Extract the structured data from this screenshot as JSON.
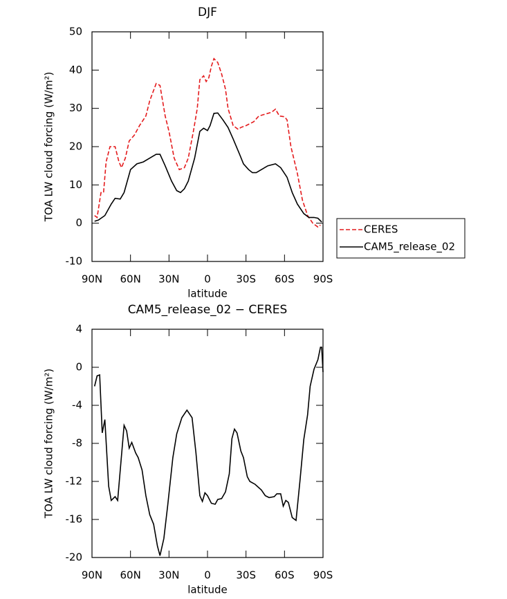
{
  "chart_data": [
    {
      "type": "line",
      "title": "DJF",
      "xlabel": "latitude",
      "ylabel": "TOA LW cloud forcing (W/m²)",
      "xlim": [
        90,
        -90
      ],
      "ylim": [
        -10,
        50
      ],
      "xticks": [
        {
          "value": 90,
          "label": "90N"
        },
        {
          "value": 60,
          "label": "60N"
        },
        {
          "value": 30,
          "label": "30N"
        },
        0,
        {
          "value": -30,
          "label": "30S"
        },
        {
          "value": -60,
          "label": "60S"
        },
        {
          "value": -90,
          "label": "90S"
        }
      ],
      "yticks": [
        -10,
        0,
        10,
        20,
        30,
        40,
        50
      ],
      "legend": "right",
      "series": [
        {
          "name": "CERES",
          "color": "#e41a1c",
          "dash": true,
          "x": [
            88,
            86,
            83,
            81,
            79,
            76,
            72,
            69,
            67,
            64,
            61,
            57,
            53,
            48,
            45,
            40,
            37,
            33,
            30,
            26,
            22,
            18,
            15,
            11,
            8,
            6,
            3,
            1,
            -1,
            -3,
            -5,
            -8,
            -11,
            -14,
            -16,
            -20,
            -24,
            -26,
            -30,
            -36,
            -40,
            -45,
            -50,
            -53,
            -56,
            -60,
            -62,
            -65,
            -70,
            -74,
            -78,
            -82,
            -86,
            -88
          ],
          "values": [
            2,
            1.5,
            8,
            8,
            16,
            20,
            20,
            16,
            14.5,
            17,
            21.5,
            23,
            25.5,
            28,
            32,
            36.5,
            36,
            28,
            24,
            17,
            14,
            14.5,
            17,
            24,
            30,
            37.5,
            38.5,
            37,
            38,
            41,
            43,
            42,
            39,
            35,
            30,
            25.5,
            24.5,
            25,
            25.5,
            26.5,
            28,
            28.5,
            29,
            29.8,
            28,
            27.8,
            27,
            20,
            13,
            6,
            2,
            0,
            -1,
            -0.5
          ]
        },
        {
          "name": "CAM5_release_02",
          "color": "#000000",
          "dash": false,
          "x": [
            88,
            85,
            80,
            75,
            72,
            68,
            65,
            60,
            55,
            50,
            45,
            40,
            37,
            33,
            28,
            24,
            21,
            18,
            15,
            10,
            6,
            3,
            0,
            -2,
            -5,
            -8,
            -12,
            -16,
            -20,
            -25,
            -28,
            -32,
            -35,
            -38,
            -42,
            -47,
            -53,
            -57,
            -62,
            -66,
            -70,
            -75,
            -79,
            -83,
            -86,
            -89
          ],
          "values": [
            0.5,
            0.8,
            2,
            5,
            6.5,
            6.3,
            8,
            14,
            15.5,
            16,
            17,
            18,
            18,
            15,
            11,
            8.5,
            8,
            9,
            11,
            17,
            24,
            24.8,
            24.2,
            25.5,
            28.7,
            28.8,
            27,
            25,
            22,
            18,
            15.5,
            14,
            13.2,
            13.2,
            14,
            15,
            15.5,
            14.5,
            12,
            8,
            5,
            2.5,
            1.5,
            1.5,
            1.3,
            0.3
          ]
        }
      ]
    },
    {
      "type": "line",
      "title": "CAM5_release_02 − CERES",
      "xlabel": "latitude",
      "ylabel": "TOA LW cloud forcing (W/m²)",
      "xlim": [
        90,
        -90
      ],
      "ylim": [
        -20,
        4
      ],
      "xticks": [
        {
          "value": 90,
          "label": "90N"
        },
        {
          "value": 60,
          "label": "60N"
        },
        {
          "value": 30,
          "label": "30N"
        },
        0,
        {
          "value": -30,
          "label": "30S"
        },
        {
          "value": -60,
          "label": "60S"
        },
        {
          "value": -90,
          "label": "90S"
        }
      ],
      "yticks": [
        -20,
        -16,
        -12,
        -8,
        -4,
        0,
        4
      ],
      "series": [
        {
          "color": "#000000",
          "dash": false,
          "x": [
            88,
            86,
            84,
            82,
            80,
            77,
            75,
            72,
            70,
            65,
            63,
            61,
            59,
            56,
            54,
            51,
            48,
            45,
            42,
            39,
            37,
            34,
            31,
            27,
            24,
            20,
            16,
            12,
            9,
            6,
            4,
            2,
            0,
            -3,
            -6,
            -8,
            -11,
            -14,
            -17,
            -19,
            -21,
            -23,
            -26,
            -28,
            -31,
            -33,
            -37,
            -42,
            -45,
            -48,
            -52,
            -54,
            -57,
            -59,
            -61,
            -63,
            -66,
            -69,
            -72,
            -75,
            -78,
            -80,
            -83,
            -86,
            -88,
            -89,
            -90
          ],
          "values": [
            -2,
            -0.9,
            -0.8,
            -6.9,
            -5.5,
            -12.5,
            -14,
            -13.6,
            -14,
            -6.1,
            -6.7,
            -8.5,
            -7.9,
            -9,
            -9.5,
            -10.8,
            -13.5,
            -15.5,
            -16.5,
            -18.8,
            -19.8,
            -18,
            -14.5,
            -9.5,
            -7,
            -5.3,
            -4.5,
            -5.3,
            -9,
            -13.5,
            -14.1,
            -13.2,
            -13.5,
            -14.3,
            -14.4,
            -13.9,
            -13.8,
            -13.1,
            -11.2,
            -7.5,
            -6.5,
            -6.9,
            -8.8,
            -9.5,
            -11.5,
            -12,
            -12.3,
            -12.9,
            -13.5,
            -13.7,
            -13.6,
            -13.3,
            -13.3,
            -14.6,
            -14,
            -14.2,
            -15.8,
            -16.1,
            -12,
            -7.6,
            -5,
            -2,
            -0.2,
            0.8,
            2.1,
            2.1,
            -0.5
          ]
        }
      ]
    }
  ]
}
